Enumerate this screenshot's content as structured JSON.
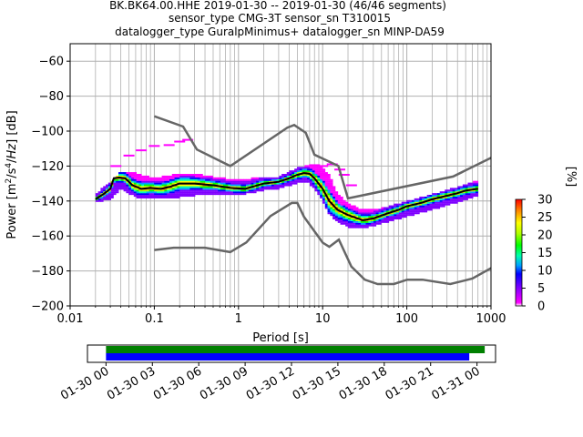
{
  "title_lines": [
    "BK.BK64.00.HHE   2019-01-30 -- 2019-01-30  (46/46 segments)",
    "sensor_type CMG-3T sensor_sn T310015",
    "datalogger_type GuralpMinimus+ datalogger_sn MINP-DA59"
  ],
  "chart_data": [
    {
      "type": "heatmap",
      "description_kind": "probabilistic power spectral density",
      "xlabel": "Period [s]",
      "ylabel": "Power [m²/s⁴/Hz] [dB]",
      "x_scale": "log",
      "xlim": [
        0.01,
        1000
      ],
      "ylim": [
        -200,
        -50
      ],
      "x_ticks": [
        0.01,
        0.1,
        1,
        10,
        100,
        1000
      ],
      "x_tick_labels": [
        "0.01",
        "0.1",
        "1",
        "10",
        "100",
        "1000"
      ],
      "y_ticks": [
        -200,
        -180,
        -160,
        -140,
        -120,
        -100,
        -80,
        -60
      ],
      "y_tick_labels": [
        "−200",
        "−180",
        "−160",
        "−140",
        "−120",
        "−100",
        "−80",
        "−60"
      ],
      "grid": true,
      "colorbar": {
        "label": "[%]",
        "range": [
          0,
          30
        ],
        "ticks": [
          0,
          5,
          10,
          15,
          20,
          25,
          30
        ],
        "colors": [
          "#ffffff",
          "#ff00ff",
          "#7f00ff",
          "#0000ff",
          "#00b0ff",
          "#00ffb0",
          "#00ff00",
          "#b0ff00",
          "#ffff00",
          "#ff8000",
          "#ff0000"
        ]
      },
      "noise_model_high": {
        "name": "",
        "color": "#666666",
        "points": [
          [
            0.1,
            -91.5
          ],
          [
            0.22,
            -97.4
          ],
          [
            0.32,
            -110.5
          ],
          [
            0.8,
            -120
          ],
          [
            3.8,
            -98
          ],
          [
            4.6,
            -96.5
          ],
          [
            6.3,
            -101
          ],
          [
            8,
            -113.5
          ],
          [
            15.4,
            -120
          ],
          [
            20,
            -138.5
          ],
          [
            354.8,
            -126
          ],
          [
            10000,
            -91.5
          ]
        ]
      },
      "noise_model_low": {
        "name": "",
        "color": "#666666",
        "points": [
          [
            0.1,
            -168
          ],
          [
            0.17,
            -166.7
          ],
          [
            0.4,
            -166.7
          ],
          [
            0.8,
            -169.2
          ],
          [
            1.24,
            -163.7
          ],
          [
            2.4,
            -148.6
          ],
          [
            4.3,
            -141.1
          ],
          [
            5,
            -141.1
          ],
          [
            6,
            -149
          ],
          [
            10,
            -163.8
          ],
          [
            12,
            -166.2
          ],
          [
            15.6,
            -162.1
          ],
          [
            21.9,
            -177.5
          ],
          [
            31.6,
            -185
          ],
          [
            45,
            -187.5
          ],
          [
            70,
            -187.5
          ],
          [
            101,
            -185
          ],
          [
            154,
            -185
          ],
          [
            328,
            -187.5
          ],
          [
            600,
            -184.4
          ],
          [
            10000,
            -151.5
          ]
        ]
      },
      "mode": {
        "name": "",
        "color": "#000000",
        "points": [
          [
            0.02,
            -139
          ],
          [
            0.025,
            -136
          ],
          [
            0.03,
            -133
          ],
          [
            0.033,
            -127
          ],
          [
            0.038,
            -126.5
          ],
          [
            0.045,
            -127
          ],
          [
            0.055,
            -131
          ],
          [
            0.07,
            -133
          ],
          [
            0.09,
            -132.5
          ],
          [
            0.12,
            -133
          ],
          [
            0.15,
            -132
          ],
          [
            0.2,
            -130
          ],
          [
            0.3,
            -130
          ],
          [
            0.5,
            -131
          ],
          [
            0.8,
            -132.5
          ],
          [
            1.2,
            -133
          ],
          [
            2,
            -130
          ],
          [
            3,
            -129
          ],
          [
            4,
            -127
          ],
          [
            5,
            -125
          ],
          [
            6,
            -124
          ],
          [
            7,
            -124.5
          ],
          [
            8,
            -127
          ],
          [
            10,
            -133
          ],
          [
            12,
            -140
          ],
          [
            15,
            -145
          ],
          [
            20,
            -148
          ],
          [
            30,
            -151
          ],
          [
            40,
            -150
          ],
          [
            60,
            -147
          ],
          [
            80,
            -145
          ],
          [
            100,
            -143
          ],
          [
            150,
            -141
          ],
          [
            200,
            -139
          ],
          [
            300,
            -137
          ],
          [
            400,
            -135.5
          ],
          [
            500,
            -134
          ],
          [
            700,
            -133
          ]
        ]
      },
      "ppsd_envelope": {
        "x": [
          0.02,
          0.03,
          0.04,
          0.06,
          0.1,
          0.2,
          0.3,
          0.5,
          1,
          2,
          3,
          5,
          7,
          10,
          12,
          15,
          20,
          30,
          50,
          100,
          200,
          400,
          700
        ],
        "upper": [
          -137,
          -130,
          -124,
          -125,
          -128,
          -125,
          -125,
          -127,
          -129,
          -127,
          -127,
          -122,
          -120,
          -122,
          -126,
          -137,
          -142,
          -146,
          -145,
          -141,
          -137,
          -133,
          -129
        ],
        "lower": [
          -140,
          -138,
          -132,
          -137,
          -138,
          -137,
          -136,
          -135,
          -136,
          -133,
          -132,
          -129,
          -129,
          -139,
          -147,
          -151,
          -154,
          -155,
          -152,
          -148,
          -144,
          -140,
          -136
        ]
      },
      "sparse_outliers": [
        [
          0.035,
          -120
        ],
        [
          0.05,
          -114
        ],
        [
          0.07,
          -111
        ],
        [
          0.1,
          -108.5
        ],
        [
          0.15,
          -108
        ],
        [
          0.2,
          -106
        ],
        [
          0.25,
          -105
        ],
        [
          8,
          -119.5
        ],
        [
          10,
          -120
        ],
        [
          13,
          -119
        ],
        [
          16,
          -122
        ],
        [
          18,
          -125
        ],
        [
          22,
          -131
        ]
      ]
    },
    {
      "type": "timeline",
      "tick_labels": [
        "01-30 00",
        "01-30 03",
        "01-30 06",
        "01-30 09",
        "01-30 12",
        "01-30 15",
        "01-30 18",
        "01-30 21",
        "01-31 00"
      ],
      "tick_hours": [
        0,
        3,
        6,
        9,
        12,
        15,
        18,
        21,
        24
      ],
      "xlim_hours": [
        -1.2,
        25.2
      ],
      "bars": [
        {
          "color": "#008000",
          "start_hour": 0,
          "end_hour": 24.5
        },
        {
          "color": "#0000ff",
          "start_hour": 0,
          "end_hour": 23.5
        }
      ]
    }
  ]
}
